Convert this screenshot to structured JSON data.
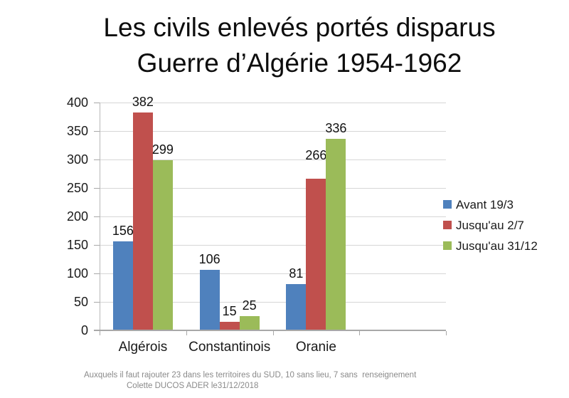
{
  "slide": {
    "title_line1": "Les civils enlevés portés disparus",
    "title_line2": "Guerre d’Algérie 1954-1962",
    "footnote_line1": "Auxquels il faut rajouter 23 dans les territoires du SUD, 10 sans lieu, 7 sans  renseignement",
    "footnote_line2": "Colette DUCOS ADER le31/12/2018"
  },
  "chart_data": {
    "type": "bar",
    "title": "Les civils enlevés portés disparus — Guerre d’Algérie 1954-1962",
    "categories": [
      "Algérois",
      "Constantinois",
      "Oranie"
    ],
    "series": [
      {
        "name": "Avant 19/3",
        "color": "#4f81bd",
        "values": [
          156,
          106,
          81
        ]
      },
      {
        "name": "Jusqu'au 2/7",
        "color": "#c0504d",
        "values": [
          382,
          15,
          266
        ]
      },
      {
        "name": "Jusqu'au 31/12",
        "color": "#9bbb59",
        "values": [
          299,
          25,
          336
        ]
      }
    ],
    "ylim": [
      0,
      400
    ],
    "yticks": [
      0,
      50,
      100,
      150,
      200,
      250,
      300,
      350,
      400
    ],
    "grid": true,
    "data_labels": true,
    "legend_position": "right",
    "empty_trailing_category_slots": 1,
    "label_lifts": [
      [
        0,
        0,
        0
      ],
      [
        0,
        0,
        0
      ],
      [
        0,
        18,
        0
      ]
    ],
    "colors": {
      "gridline": "#d6d6d6",
      "axis": "#a8a8a8",
      "text": "#1a1a1a",
      "footnote": "#8a8a8a"
    }
  }
}
